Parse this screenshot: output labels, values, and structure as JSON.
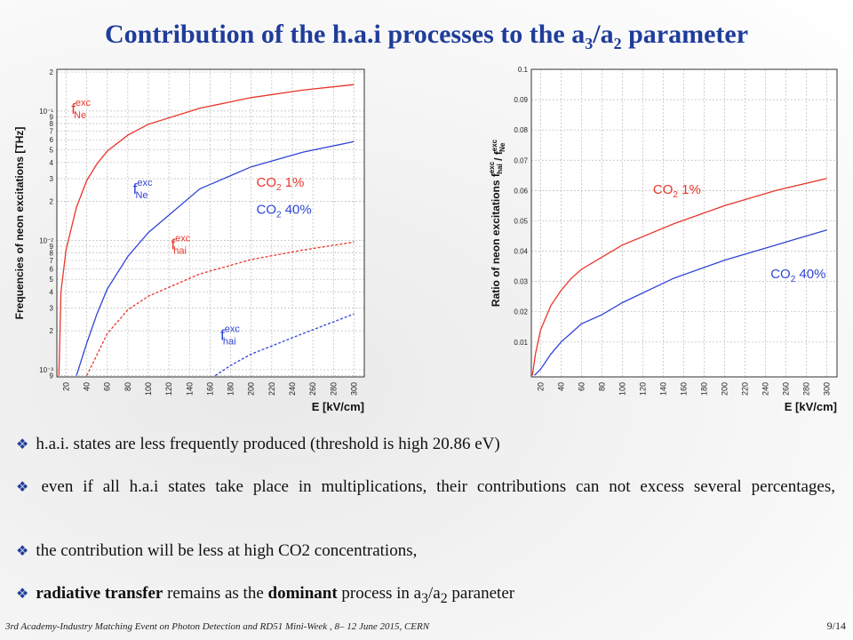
{
  "title": {
    "pre": "Contribution of the h.a.i processes to the a",
    "sub1": "3",
    "mid": "/a",
    "sub2": "2",
    "post": " parameter"
  },
  "colors": {
    "title": "#1f3d9a",
    "red": "#e8352a",
    "blue": "#2f45d6",
    "grid": "#b9b9b9"
  },
  "chart_data": [
    {
      "type": "line",
      "yscale": "log",
      "xlabel": "E [kV/cm]",
      "ylabel": "Frequencies of neon excitations [THz]",
      "xlim": [
        11,
        310
      ],
      "ylim": [
        0.00088,
        0.21
      ],
      "xticks": [
        20,
        40,
        60,
        80,
        100,
        120,
        140,
        160,
        180,
        200,
        220,
        240,
        260,
        280,
        300
      ],
      "ytick_labels": [
        {
          "v": 0.2,
          "t": "2"
        },
        {
          "v": 0.1,
          "t": "10⁻¹"
        },
        {
          "v": 0.09,
          "t": "9"
        },
        {
          "v": 0.08,
          "t": "8"
        },
        {
          "v": 0.07,
          "t": "7"
        },
        {
          "v": 0.06,
          "t": "6"
        },
        {
          "v": 0.05,
          "t": "5"
        },
        {
          "v": 0.04,
          "t": "4"
        },
        {
          "v": 0.03,
          "t": "3"
        },
        {
          "v": 0.02,
          "t": "2"
        },
        {
          "v": 0.01,
          "t": "10⁻²"
        },
        {
          "v": 0.009,
          "t": "9"
        },
        {
          "v": 0.008,
          "t": "8"
        },
        {
          "v": 0.007,
          "t": "7"
        },
        {
          "v": 0.006,
          "t": "6"
        },
        {
          "v": 0.005,
          "t": "5"
        },
        {
          "v": 0.004,
          "t": "4"
        },
        {
          "v": 0.003,
          "t": "3"
        },
        {
          "v": 0.002,
          "t": "2"
        },
        {
          "v": 0.001,
          "t": "10⁻³"
        },
        {
          "v": 0.0009,
          "t": "9"
        }
      ],
      "series": [
        {
          "style": "solid",
          "color": "#e8352a",
          "x": [
            13,
            15,
            20,
            30,
            40,
            50,
            60,
            80,
            100,
            150,
            200,
            250,
            300
          ],
          "y": [
            0.0009,
            0.004,
            0.0085,
            0.018,
            0.029,
            0.039,
            0.049,
            0.065,
            0.079,
            0.105,
            0.127,
            0.145,
            0.16
          ]
        },
        {
          "style": "solid",
          "color": "#2f45d6",
          "x": [
            30,
            40,
            50,
            60,
            80,
            100,
            150,
            200,
            250,
            300
          ],
          "y": [
            0.0009,
            0.0016,
            0.0027,
            0.0042,
            0.0075,
            0.0115,
            0.025,
            0.037,
            0.048,
            0.058
          ]
        },
        {
          "style": "dashed",
          "color": "#e8352a",
          "x": [
            40,
            50,
            60,
            80,
            100,
            150,
            200,
            250,
            300
          ],
          "y": [
            0.0009,
            0.0013,
            0.0019,
            0.0029,
            0.0037,
            0.0055,
            0.0071,
            0.0084,
            0.0097
          ]
        },
        {
          "style": "dashed",
          "color": "#2f45d6",
          "x": [
            165,
            180,
            200,
            250,
            300
          ],
          "y": [
            0.0009,
            0.00108,
            0.00132,
            0.0019,
            0.0027
          ]
        }
      ],
      "annotations": [
        {
          "text": "f",
          "sup": "exc",
          "sub": "Ne",
          "x": 25,
          "y": 0.095,
          "color": "#e8352a"
        },
        {
          "text": "f",
          "sup": "exc",
          "sub": "Ne",
          "x": 85,
          "y": 0.023,
          "color": "#2f45d6"
        },
        {
          "text": "f",
          "sup": "exc",
          "sub": "hai",
          "x": 122,
          "y": 0.0085,
          "color": "#e8352a"
        },
        {
          "text": "f",
          "sup": "exc",
          "sub": "hai",
          "x": 170,
          "y": 0.0017,
          "color": "#2f45d6"
        },
        {
          "text": "CO",
          "sub": "2",
          "post": " 1%",
          "x": 205,
          "y": 0.026,
          "color": "#e8352a"
        },
        {
          "text": "CO",
          "sub": "2",
          "post": " 40%",
          "x": 205,
          "y": 0.016,
          "color": "#2f45d6"
        }
      ]
    },
    {
      "type": "line",
      "xlabel": "E [kV/cm]",
      "ylabel": "Ratio of neon excitations f",
      "ylabel_sup_sub": [
        {
          "sup": "exc",
          "sub": "hai"
        },
        {
          "text": " / f"
        },
        {
          "sup": "exc",
          "sub": "Ne"
        }
      ],
      "xlim": [
        11,
        310
      ],
      "ylim": [
        -0.0015,
        0.1
      ],
      "xticks": [
        20,
        40,
        60,
        80,
        100,
        120,
        140,
        160,
        180,
        200,
        220,
        240,
        260,
        280,
        300
      ],
      "yticks": [
        0.01,
        0.02,
        0.03,
        0.04,
        0.05,
        0.06,
        0.07,
        0.08,
        0.09,
        0.1
      ],
      "series": [
        {
          "style": "solid",
          "color": "#e8352a",
          "x": [
            12,
            15,
            20,
            30,
            40,
            50,
            60,
            80,
            100,
            150,
            200,
            250,
            300
          ],
          "y": [
            -0.001,
            0.006,
            0.014,
            0.022,
            0.027,
            0.031,
            0.034,
            0.038,
            0.042,
            0.049,
            0.055,
            0.06,
            0.064
          ]
        },
        {
          "style": "solid",
          "color": "#2f45d6",
          "x": [
            14,
            20,
            30,
            40,
            50,
            60,
            80,
            100,
            150,
            200,
            250,
            300
          ],
          "y": [
            -0.001,
            0.001,
            0.006,
            0.01,
            0.013,
            0.016,
            0.019,
            0.023,
            0.031,
            0.037,
            0.042,
            0.047
          ]
        }
      ],
      "annotations": [
        {
          "text": "CO",
          "sub": "2",
          "post": " 1%",
          "x": 130,
          "y": 0.059,
          "color": "#e8352a"
        },
        {
          "text": "CO",
          "sub": "2",
          "post": " 40%",
          "x": 245,
          "y": 0.031,
          "color": "#2f45d6"
        }
      ]
    }
  ],
  "bullets": [
    "h.a.i. states are less frequently produced (threshold is high 20.86 eV)",
    "even if all h.a.i states take place in multiplications, their contributions can not excess several percentages,",
    "the contribution will be less at high CO2 concentrations,"
  ],
  "bullet4": {
    "b1": "radiative transfer",
    "t1": " remains as the ",
    "b2": "dominant",
    "t2": " process in a",
    "s1": "3",
    "t3": "/a",
    "s2": "2",
    "t4": " paraneter"
  },
  "footer": "3rd Academy-Industry Matching Event on Photon Detection and RD51 Mini-Week ,  8– 12 June 2015, CERN",
  "page": "9/14"
}
